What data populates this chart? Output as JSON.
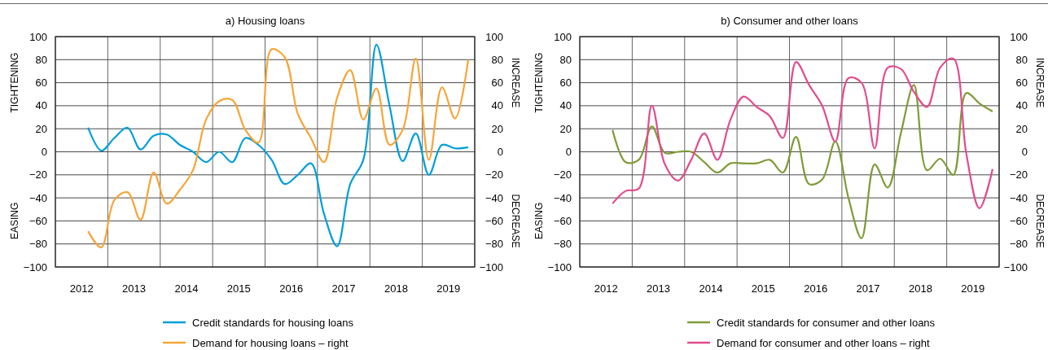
{
  "chart_data": [
    {
      "type": "line",
      "title": "a) Housing loans",
      "x": [
        2012.625,
        2012.875,
        2013.125,
        2013.375,
        2013.625,
        2013.875,
        2014.125,
        2014.375,
        2014.625,
        2014.875,
        2015.125,
        2015.375,
        2015.625,
        2015.875,
        2016.125,
        2016.375,
        2016.625,
        2016.875,
        2017.125,
        2017.375,
        2017.625,
        2017.875,
        2018.125,
        2018.375,
        2018.625,
        2018.875,
        2019.125,
        2019.375,
        2019.625,
        2019.875
      ],
      "series": [
        {
          "name": "Credit standards for housing loans",
          "color": "#009fda",
          "values": [
            21,
            1,
            12,
            21,
            2,
            14,
            15,
            6,
            0,
            -9,
            0,
            -9,
            12,
            6,
            -7,
            -28,
            -20,
            -10,
            -54,
            -82,
            -28,
            -7,
            93,
            40,
            -8,
            16,
            -20,
            6,
            3,
            4
          ]
        },
        {
          "name": "Demand for housing loans – right",
          "color": "#f7a536",
          "axis": "y2",
          "values": [
            -69,
            -83,
            -42,
            -35,
            -59,
            -18,
            -45,
            -33,
            -16,
            28,
            44,
            45,
            19,
            8,
            89,
            82,
            33,
            12,
            -9,
            47,
            71,
            28,
            55,
            6,
            19,
            81,
            -7,
            56,
            29,
            80
          ]
        }
      ],
      "xlim": [
        2012,
        2020
      ],
      "xticks": [
        {
          "value": 2012,
          "label": null
        },
        {
          "value": 2012.5,
          "label": "2012"
        },
        {
          "value": 2013,
          "label": null
        },
        {
          "value": 2013.5,
          "label": "2013"
        },
        {
          "value": 2014,
          "label": null
        },
        {
          "value": 2014.5,
          "label": "2014"
        },
        {
          "value": 2015,
          "label": null
        },
        {
          "value": 2015.5,
          "label": "2015"
        },
        {
          "value": 2016,
          "label": null
        },
        {
          "value": 2016.5,
          "label": "2016"
        },
        {
          "value": 2017,
          "label": null
        },
        {
          "value": 2017.5,
          "label": "2017"
        },
        {
          "value": 2018,
          "label": null
        },
        {
          "value": 2018.5,
          "label": "2018"
        },
        {
          "value": 2019,
          "label": null
        },
        {
          "value": 2019.5,
          "label": "2019"
        },
        {
          "value": 2020,
          "label": null
        }
      ],
      "ylim": [
        -100,
        100
      ],
      "yticks": [
        -100,
        -80,
        -60,
        -40,
        -20,
        0,
        20,
        40,
        60,
        80,
        100
      ],
      "y2lim": [
        -100,
        100
      ],
      "y2ticks": [
        -100,
        -80,
        -60,
        -40,
        -20,
        0,
        20,
        40,
        60,
        80,
        100
      ],
      "annotations": [
        "TIGHTENING",
        "EASING",
        "INCREASE",
        "DECREASE"
      ],
      "grid": true,
      "legend": "bottom"
    },
    {
      "type": "line",
      "title": "b) Consumer and other loans",
      "x": [
        2012.625,
        2012.875,
        2013.125,
        2013.375,
        2013.625,
        2013.875,
        2014.125,
        2014.375,
        2014.625,
        2014.875,
        2015.125,
        2015.375,
        2015.625,
        2015.875,
        2016.125,
        2016.375,
        2016.625,
        2016.875,
        2017.125,
        2017.375,
        2017.625,
        2017.875,
        2018.125,
        2018.375,
        2018.625,
        2018.875,
        2019.125,
        2019.375,
        2019.625,
        2019.875
      ],
      "series": [
        {
          "name": "Credit standards for consumer and other loans",
          "color": "#7f9b37",
          "values": [
            19,
            -9,
            -7,
            22,
            -1,
            0,
            0,
            -9,
            -18,
            -10,
            -10,
            -10,
            -7,
            -18,
            13,
            -28,
            -24,
            9,
            -40,
            -75,
            -11,
            -31,
            16,
            58,
            -16,
            -6,
            -20,
            51,
            42,
            35
          ]
        },
        {
          "name": "Demand for consumer and other loans – right",
          "color": "#e34b8f",
          "axis": "y2",
          "values": [
            -45,
            -34,
            -32,
            40,
            -11,
            -25,
            -7,
            16,
            -7,
            28,
            48,
            39,
            31,
            12,
            78,
            58,
            40,
            9,
            64,
            60,
            3,
            73,
            72,
            52,
            39,
            73,
            81,
            -2,
            -49,
            -15
          ]
        }
      ],
      "xlim": [
        2012,
        2020
      ],
      "xticks": [
        {
          "value": 2012,
          "label": null
        },
        {
          "value": 2012.5,
          "label": "2012"
        },
        {
          "value": 2013,
          "label": null
        },
        {
          "value": 2013.5,
          "label": "2013"
        },
        {
          "value": 2014,
          "label": null
        },
        {
          "value": 2014.5,
          "label": "2014"
        },
        {
          "value": 2015,
          "label": null
        },
        {
          "value": 2015.5,
          "label": "2015"
        },
        {
          "value": 2016,
          "label": null
        },
        {
          "value": 2016.5,
          "label": "2016"
        },
        {
          "value": 2017,
          "label": null
        },
        {
          "value": 2017.5,
          "label": "2017"
        },
        {
          "value": 2018,
          "label": null
        },
        {
          "value": 2018.5,
          "label": "2018"
        },
        {
          "value": 2019,
          "label": null
        },
        {
          "value": 2019.5,
          "label": "2019"
        },
        {
          "value": 2020,
          "label": null
        }
      ],
      "ylim": [
        -100,
        100
      ],
      "yticks": [
        -100,
        -80,
        -60,
        -40,
        -20,
        0,
        20,
        40,
        60,
        80,
        100
      ],
      "y2lim": [
        -100,
        100
      ],
      "y2ticks": [
        -100,
        -80,
        -60,
        -40,
        -20,
        0,
        20,
        40,
        60,
        80,
        100
      ],
      "annotations": [
        "TIGHTENING",
        "EASING",
        "INCREASE",
        "DECREASE"
      ],
      "grid": true,
      "legend": "bottom"
    }
  ]
}
